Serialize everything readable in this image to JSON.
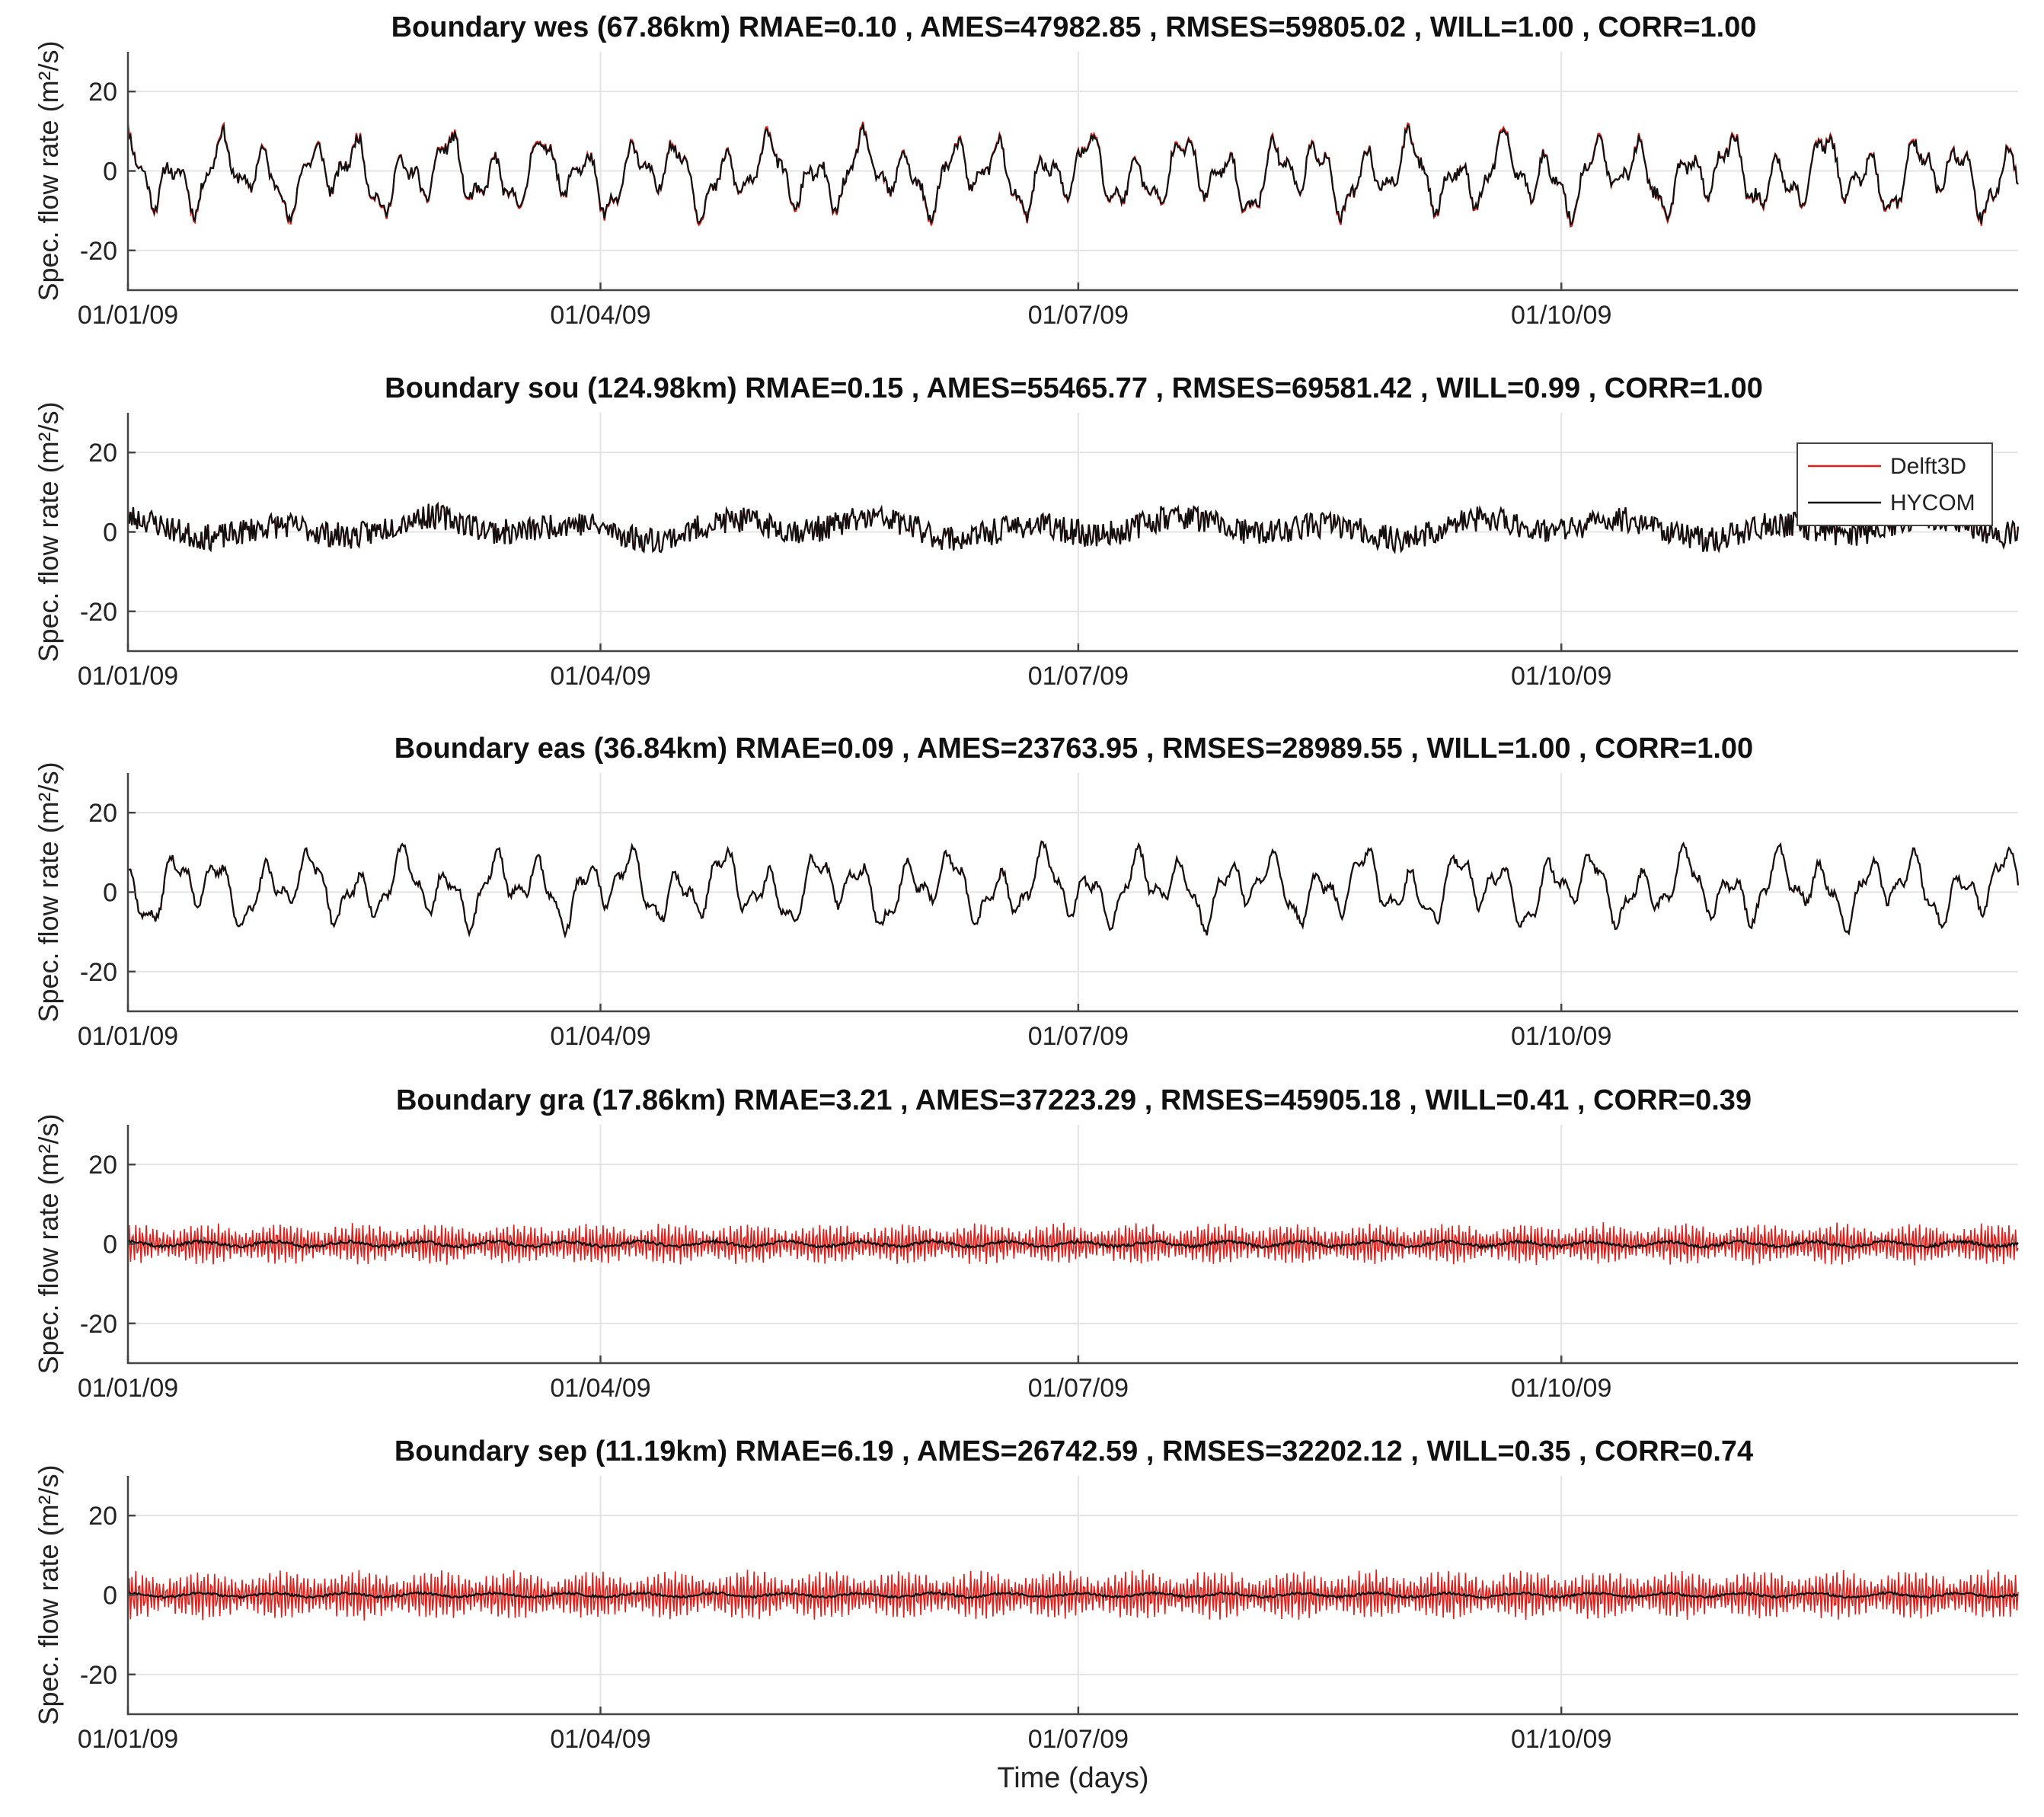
{
  "chart_data": [
    {
      "type": "line",
      "title": {
        "name": "Boundary wes (67.86km)",
        "stats": [
          "RMAE=0.10",
          "AMES=47982.85",
          "RMSES=59805.02",
          "WILL=1.00",
          "CORR=1.00"
        ]
      },
      "ylabel": "Spec. flow rate (m²/s)",
      "ylim": [
        -30,
        30
      ],
      "yticks": [
        -20,
        0,
        20
      ],
      "xtick_labels": [
        "01/01/09",
        "01/04/09",
        "01/07/09",
        "01/10/09"
      ],
      "xtick_days": [
        0,
        90,
        181,
        273
      ],
      "xlim_days": [
        0,
        360
      ],
      "grid": true,
      "series": [
        {
          "name": "Delft3D",
          "color": "#e0201b",
          "amplitude": 11,
          "noise": 3,
          "bias": -1,
          "seed": 11,
          "style": "smooth"
        },
        {
          "name": "HYCOM",
          "color": "#111111",
          "amplitude": 10.5,
          "noise": 3,
          "bias": -1,
          "seed": 11,
          "style": "smooth"
        }
      ]
    },
    {
      "type": "line",
      "title": {
        "name": "Boundary sou (124.98km)",
        "stats": [
          "RMAE=0.15",
          "AMES=55465.77",
          "RMSES=69581.42",
          "WILL=0.99",
          "CORR=1.00"
        ]
      },
      "ylabel": "Spec. flow rate (m²/s)",
      "ylim": [
        -30,
        30
      ],
      "yticks": [
        -20,
        0,
        20
      ],
      "xtick_labels": [
        "01/01/09",
        "01/04/09",
        "01/07/09",
        "01/10/09"
      ],
      "xtick_days": [
        0,
        90,
        181,
        273
      ],
      "xlim_days": [
        0,
        360
      ],
      "grid": true,
      "legend": {
        "placement": "top-right",
        "entries": [
          "Delft3D",
          "HYCOM"
        ]
      },
      "series": [
        {
          "name": "Delft3D",
          "color": "#e0201b",
          "amplitude": 3,
          "noise": 3,
          "bias": 1,
          "seed": 23,
          "style": "noisy"
        },
        {
          "name": "HYCOM",
          "color": "#111111",
          "amplitude": 3,
          "noise": 3,
          "bias": 1,
          "seed": 23,
          "style": "noisy"
        }
      ]
    },
    {
      "type": "line",
      "title": {
        "name": "Boundary eas (36.84km)",
        "stats": [
          "RMAE=0.09",
          "AMES=23763.95",
          "RMSES=28989.55",
          "WILL=1.00",
          "CORR=1.00"
        ]
      },
      "ylabel": "Spec. flow rate (m²/s)",
      "ylim": [
        -30,
        30
      ],
      "yticks": [
        -20,
        0,
        20
      ],
      "xtick_labels": [
        "01/01/09",
        "01/04/09",
        "01/07/09",
        "01/10/09"
      ],
      "xtick_days": [
        0,
        90,
        181,
        273
      ],
      "xlim_days": [
        0,
        360
      ],
      "grid": true,
      "series": [
        {
          "name": "Delft3D",
          "color": "#e0201b",
          "amplitude": 10,
          "noise": 2,
          "bias": 1,
          "seed": 37,
          "style": "smooth"
        },
        {
          "name": "HYCOM",
          "color": "#111111",
          "amplitude": 10,
          "noise": 2,
          "bias": 1,
          "seed": 37,
          "style": "smooth"
        }
      ]
    },
    {
      "type": "line",
      "title": {
        "name": "Boundary gra (17.86km)",
        "stats": [
          "RMAE=3.21",
          "AMES=37223.29",
          "RMSES=45905.18",
          "WILL=0.41",
          "CORR=0.39"
        ]
      },
      "ylabel": "Spec. flow rate (m²/s)",
      "ylim": [
        -30,
        30
      ],
      "yticks": [
        -20,
        0,
        20
      ],
      "xtick_labels": [
        "01/01/09",
        "01/04/09",
        "01/07/09",
        "01/10/09"
      ],
      "xtick_days": [
        0,
        90,
        181,
        273
      ],
      "xlim_days": [
        0,
        360
      ],
      "grid": true,
      "series": [
        {
          "name": "Delft3D",
          "color": "#e0201b",
          "amplitude": 5,
          "noise": 1,
          "bias": 0,
          "seed": 51,
          "style": "tidal"
        },
        {
          "name": "HYCOM",
          "color": "#111111",
          "amplitude": 1,
          "noise": 0.8,
          "bias": 0,
          "seed": 52,
          "style": "flat"
        }
      ]
    },
    {
      "type": "line",
      "title": {
        "name": "Boundary sep (11.19km)",
        "stats": [
          "RMAE=6.19",
          "AMES=26742.59",
          "RMSES=32202.12",
          "WILL=0.35",
          "CORR=0.74"
        ]
      },
      "ylabel": "Spec. flow rate (m²/s)",
      "ylim": [
        -30,
        30
      ],
      "yticks": [
        -20,
        0,
        20
      ],
      "xtick_labels": [
        "01/01/09",
        "01/04/09",
        "01/07/09",
        "01/10/09"
      ],
      "xtick_days": [
        0,
        90,
        181,
        273
      ],
      "xlim_days": [
        0,
        360
      ],
      "grid": true,
      "xlabel": "Time (days)",
      "series": [
        {
          "name": "Delft3D",
          "color": "#e0201b",
          "amplitude": 6,
          "noise": 1,
          "bias": 0,
          "seed": 63,
          "style": "tidal"
        },
        {
          "name": "HYCOM",
          "color": "#111111",
          "amplitude": 0.8,
          "noise": 0.6,
          "bias": 0,
          "seed": 64,
          "style": "flat"
        }
      ]
    }
  ]
}
